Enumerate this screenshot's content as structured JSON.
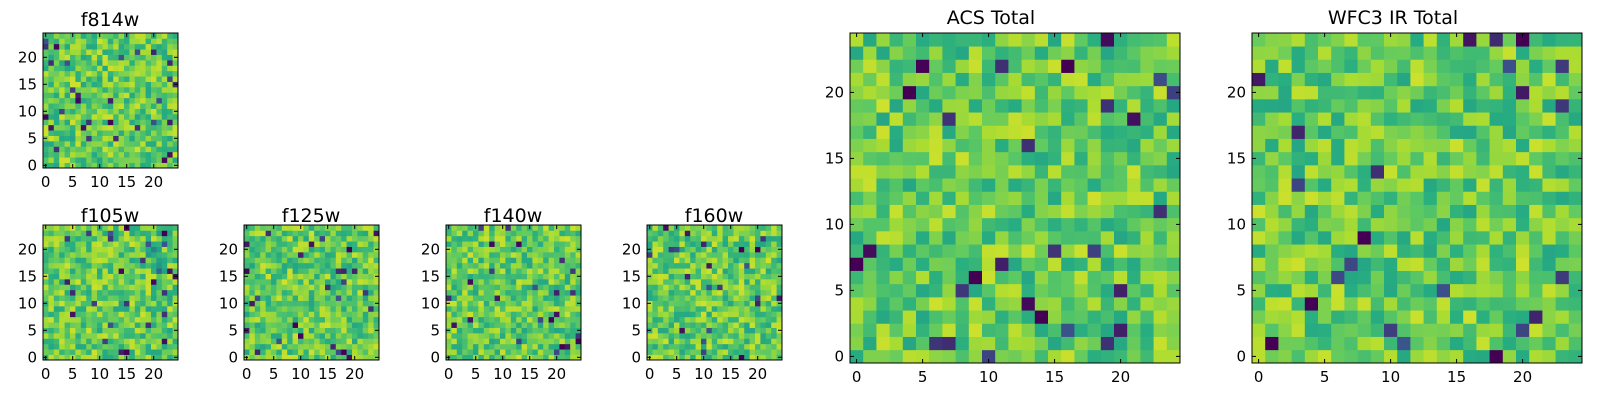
{
  "colormap": [
    "#440154",
    "#3b528b",
    "#21918c",
    "#27ad81",
    "#5ec962",
    "#aadc32",
    "#fde725"
  ],
  "chart_data": [
    {
      "type": "heatmap",
      "id": "f814w",
      "title": "f814w",
      "size": 25,
      "value_range": [
        0,
        1
      ],
      "xticks": [
        0,
        5,
        10,
        15,
        20
      ],
      "yticks": [
        0,
        5,
        10,
        15,
        20
      ],
      "seed": 814,
      "features": []
    },
    {
      "type": "heatmap",
      "id": "f105w",
      "title": "f105w",
      "size": 25,
      "value_range": [
        0,
        1
      ],
      "xticks": [
        0,
        5,
        10,
        15,
        20
      ],
      "yticks": [
        0,
        5,
        10,
        15,
        20
      ],
      "seed": 105,
      "features": [
        [
          20,
          20,
          0.3,
          1.8
        ],
        [
          21,
          17,
          0.35,
          1.5
        ],
        [
          22,
          23,
          0.0,
          1.0
        ]
      ]
    },
    {
      "type": "heatmap",
      "id": "f125w",
      "title": "f125w",
      "size": 25,
      "value_range": [
        0,
        1
      ],
      "xticks": [
        0,
        5,
        10,
        15,
        20
      ],
      "yticks": [
        0,
        5,
        10,
        15,
        20
      ],
      "seed": 125,
      "features": [
        [
          19,
          20,
          0.0,
          0.8
        ],
        [
          18,
          1,
          0.0,
          0.8
        ],
        [
          9,
          6,
          0.0,
          0.8
        ]
      ]
    },
    {
      "type": "heatmap",
      "id": "f140w",
      "title": "f140w",
      "size": 25,
      "value_range": [
        0,
        1
      ],
      "xticks": [
        0,
        5,
        10,
        15,
        20
      ],
      "yticks": [
        0,
        5,
        10,
        15,
        20
      ],
      "seed": 140,
      "features": [
        [
          24,
          3,
          0.0,
          0.9
        ],
        [
          21,
          2,
          0.0,
          0.8
        ]
      ]
    },
    {
      "type": "heatmap",
      "id": "f160w",
      "title": "f160w",
      "size": 25,
      "value_range": [
        0,
        1
      ],
      "xticks": [
        0,
        5,
        10,
        15,
        20
      ],
      "yticks": [
        0,
        5,
        10,
        15,
        20
      ],
      "seed": 160,
      "features": [
        [
          20,
          20,
          0.0,
          0.8
        ],
        [
          17,
          0,
          0.0,
          0.8
        ]
      ]
    },
    {
      "type": "heatmap",
      "id": "acs_total",
      "title": "ACS Total",
      "size": 25,
      "value_range": [
        0,
        1
      ],
      "xticks": [
        0,
        5,
        10,
        15,
        20
      ],
      "yticks": [
        0,
        5,
        10,
        15,
        20
      ],
      "seed": 901,
      "features": [
        [
          4,
          20,
          0.0,
          0.6
        ],
        [
          16,
          22,
          0.0,
          0.6
        ],
        [
          0,
          7,
          0.0,
          0.6
        ],
        [
          9,
          6,
          0.0,
          0.6
        ],
        [
          14,
          3,
          0.0,
          0.6
        ]
      ]
    },
    {
      "type": "heatmap",
      "id": "wfc3_ir_total",
      "title": "WFC3 IR Total",
      "size": 25,
      "value_range": [
        0,
        1
      ],
      "xticks": [
        0,
        5,
        10,
        15,
        20
      ],
      "yticks": [
        0,
        5,
        10,
        15,
        20
      ],
      "seed": 902,
      "features": [
        [
          20,
          24,
          0.0,
          0.6
        ],
        [
          8,
          9,
          0.0,
          0.6
        ],
        [
          4,
          4,
          0.0,
          0.6
        ],
        [
          1,
          1,
          0.0,
          0.6
        ],
        [
          18,
          0,
          0.0,
          0.6
        ]
      ]
    }
  ]
}
